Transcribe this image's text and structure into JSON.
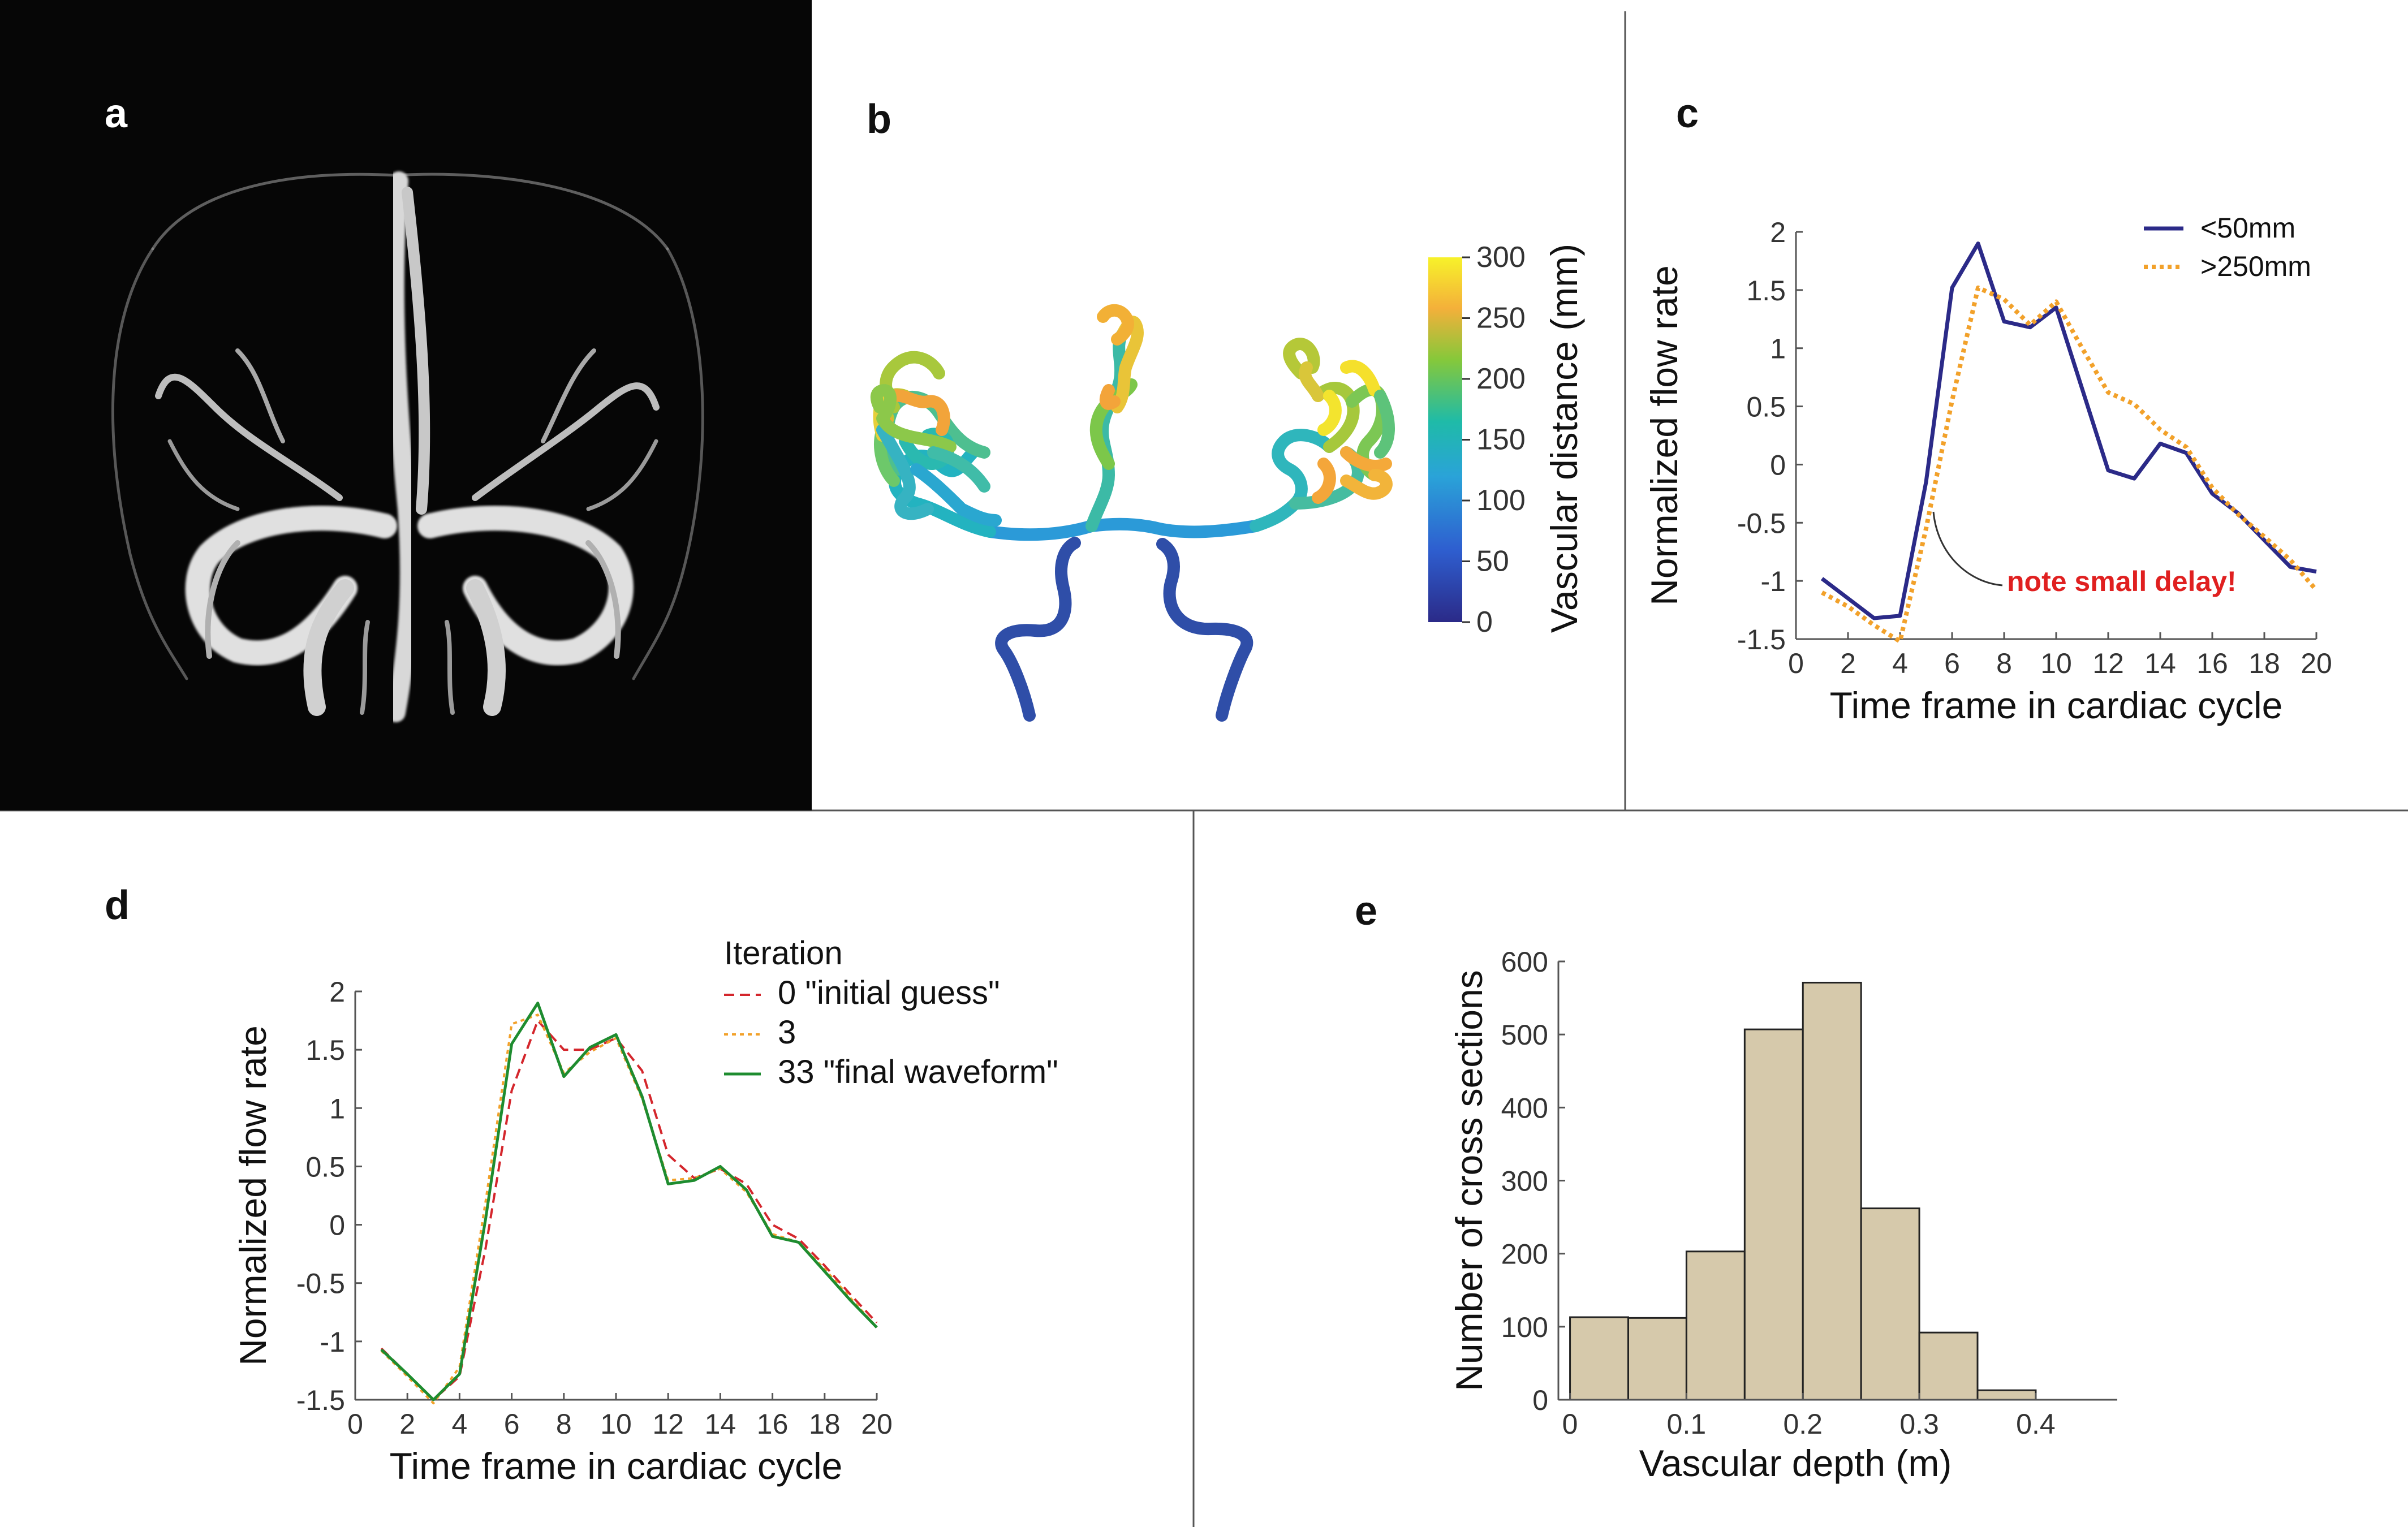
{
  "colors": {
    "navy": "#2b2a88",
    "orange": "#f2a12a",
    "red": "#d4262c",
    "green": "#1e8c2f",
    "bar_fill": "#d6c9ab",
    "note_red": "#e02020"
  },
  "panels": {
    "a": {
      "label": "a"
    },
    "b": {
      "label": "b",
      "colorbar_title": "Vascular distance (mm)",
      "colorbar_ticks": [
        "300",
        "250",
        "200",
        "150",
        "100",
        "50",
        "0"
      ]
    },
    "c": {
      "label": "c",
      "annotation": "note small delay!"
    },
    "d": {
      "label": "d"
    },
    "e": {
      "label": "e"
    }
  },
  "chart_data": [
    {
      "panel": "c",
      "type": "line",
      "xlabel": "Time frame in cardiac cycle",
      "ylabel": "Normalized flow rate",
      "xlim": [
        0,
        20
      ],
      "ylim": [
        -1.5,
        2
      ],
      "xticks": [
        "0",
        "2",
        "4",
        "6",
        "8",
        "10",
        "12",
        "14",
        "16",
        "18",
        "20"
      ],
      "yticks": [
        "2",
        "1.5",
        "1",
        "0.5",
        "0",
        "-0.5",
        "-1",
        "-1.5"
      ],
      "legend": {
        "placement": "top-right",
        "title": ""
      },
      "x": [
        1,
        2,
        3,
        4,
        5,
        6,
        7,
        8,
        9,
        10,
        11,
        12,
        13,
        14,
        15,
        16,
        17,
        18,
        19,
        20
      ],
      "series": [
        {
          "name": "<50mm",
          "style": "solid",
          "color": "#2b2a88",
          "values": [
            -0.98,
            -1.15,
            -1.32,
            -1.3,
            -0.15,
            1.52,
            1.9,
            1.23,
            1.18,
            1.35,
            0.65,
            -0.05,
            -0.12,
            0.18,
            0.1,
            -0.25,
            -0.42,
            -0.65,
            -0.88,
            -0.92
          ]
        },
        {
          "name": ">250mm",
          "style": "dotted",
          "color": "#f2a12a",
          "values": [
            -1.1,
            -1.22,
            -1.38,
            -1.52,
            -0.55,
            0.55,
            1.52,
            1.42,
            1.2,
            1.4,
            1.0,
            0.62,
            0.52,
            0.3,
            0.15,
            -0.2,
            -0.43,
            -0.62,
            -0.82,
            -1.08
          ]
        }
      ]
    },
    {
      "panel": "d",
      "type": "line",
      "xlabel": "Time frame in cardiac cycle",
      "ylabel": "Normalized flow rate",
      "xlim": [
        0,
        20
      ],
      "ylim": [
        -1.5,
        2
      ],
      "xticks": [
        "0",
        "2",
        "4",
        "6",
        "8",
        "10",
        "12",
        "14",
        "16",
        "18",
        "20"
      ],
      "yticks": [
        "2",
        "1.5",
        "1",
        "0.5",
        "0",
        "-0.5",
        "-1",
        "-1.5"
      ],
      "legend": {
        "placement": "top-right",
        "title": "Iteration"
      },
      "x": [
        1,
        2,
        3,
        4,
        5,
        6,
        7,
        8,
        9,
        10,
        11,
        12,
        13,
        14,
        15,
        16,
        17,
        18,
        19,
        20
      ],
      "series": [
        {
          "name": "0 \"initial guess\"",
          "style": "dashed",
          "color": "#d4262c",
          "values": [
            -1.06,
            -1.28,
            -1.5,
            -1.3,
            -0.2,
            1.15,
            1.75,
            1.5,
            1.5,
            1.6,
            1.32,
            0.6,
            0.4,
            0.48,
            0.35,
            0.0,
            -0.12,
            -0.35,
            -0.6,
            -0.84
          ]
        },
        {
          "name": "3",
          "style": "dotted",
          "color": "#f2a12a",
          "values": [
            -1.08,
            -1.3,
            -1.53,
            -1.22,
            0.2,
            1.72,
            1.8,
            1.3,
            1.48,
            1.6,
            1.08,
            0.38,
            0.4,
            0.48,
            0.28,
            -0.08,
            -0.15,
            -0.38,
            -0.63,
            -0.88
          ]
        },
        {
          "name": "33 \"final waveform\"",
          "style": "solid",
          "color": "#1e8c2f",
          "values": [
            -1.07,
            -1.28,
            -1.5,
            -1.28,
            0.05,
            1.55,
            1.9,
            1.27,
            1.52,
            1.63,
            1.1,
            0.35,
            0.38,
            0.5,
            0.3,
            -0.1,
            -0.15,
            -0.4,
            -0.65,
            -0.88
          ]
        }
      ]
    },
    {
      "panel": "e",
      "type": "bar",
      "xlabel": "Vascular depth (m)",
      "ylabel": "Number of cross sections",
      "xlim": [
        -0.01,
        0.47
      ],
      "ylim": [
        0,
        600
      ],
      "xticks": [
        "0",
        "0.1",
        "0.2",
        "0.3",
        "0.4"
      ],
      "yticks": [
        "600",
        "500",
        "400",
        "300",
        "200",
        "100",
        "0"
      ],
      "bin_edges": [
        0,
        0.05,
        0.1,
        0.15,
        0.2,
        0.25,
        0.3,
        0.35,
        0.4
      ],
      "values": [
        113,
        112,
        203,
        507,
        571,
        262,
        92,
        13
      ]
    }
  ]
}
